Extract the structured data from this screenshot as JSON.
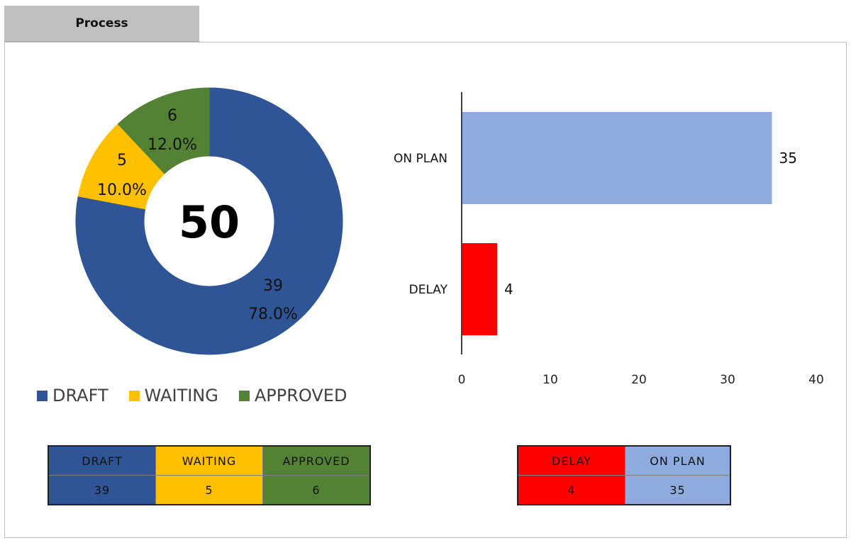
{
  "tab": {
    "label": "Process"
  },
  "colors": {
    "draft": "#2f5597",
    "waiting": "#ffc000",
    "approved": "#548235",
    "delay": "#ff0000",
    "on_plan": "#8faadc"
  },
  "chart_data": [
    {
      "type": "pie",
      "variant": "donut",
      "center_label": "50",
      "slices": [
        {
          "name": "DRAFT",
          "value": 39,
          "percent_label": "78.0%",
          "color": "#2f5597"
        },
        {
          "name": "WAITING",
          "value": 5,
          "percent_label": "10.0%",
          "color": "#ffc000"
        },
        {
          "name": "APPROVED",
          "value": 6,
          "percent_label": "12.0%",
          "color": "#548235"
        }
      ],
      "legend": [
        "DRAFT",
        "WAITING",
        "APPROVED"
      ],
      "legend_placement": "bottom"
    },
    {
      "type": "bar",
      "orientation": "horizontal",
      "categories": [
        "ON PLAN",
        "DELAY"
      ],
      "values": [
        35,
        4
      ],
      "colors": [
        "#8faadc",
        "#ff0000"
      ],
      "xlim": [
        0,
        40
      ],
      "xticks": [
        0,
        10,
        20,
        30,
        40
      ],
      "grid": false
    }
  ],
  "tables": {
    "status": {
      "headers": [
        "DRAFT",
        "WAITING",
        "APPROVED"
      ],
      "values": [
        "39",
        "5",
        "6"
      ]
    },
    "schedule": {
      "headers": [
        "DELAY",
        "ON PLAN"
      ],
      "values": [
        "4",
        "35"
      ]
    }
  }
}
